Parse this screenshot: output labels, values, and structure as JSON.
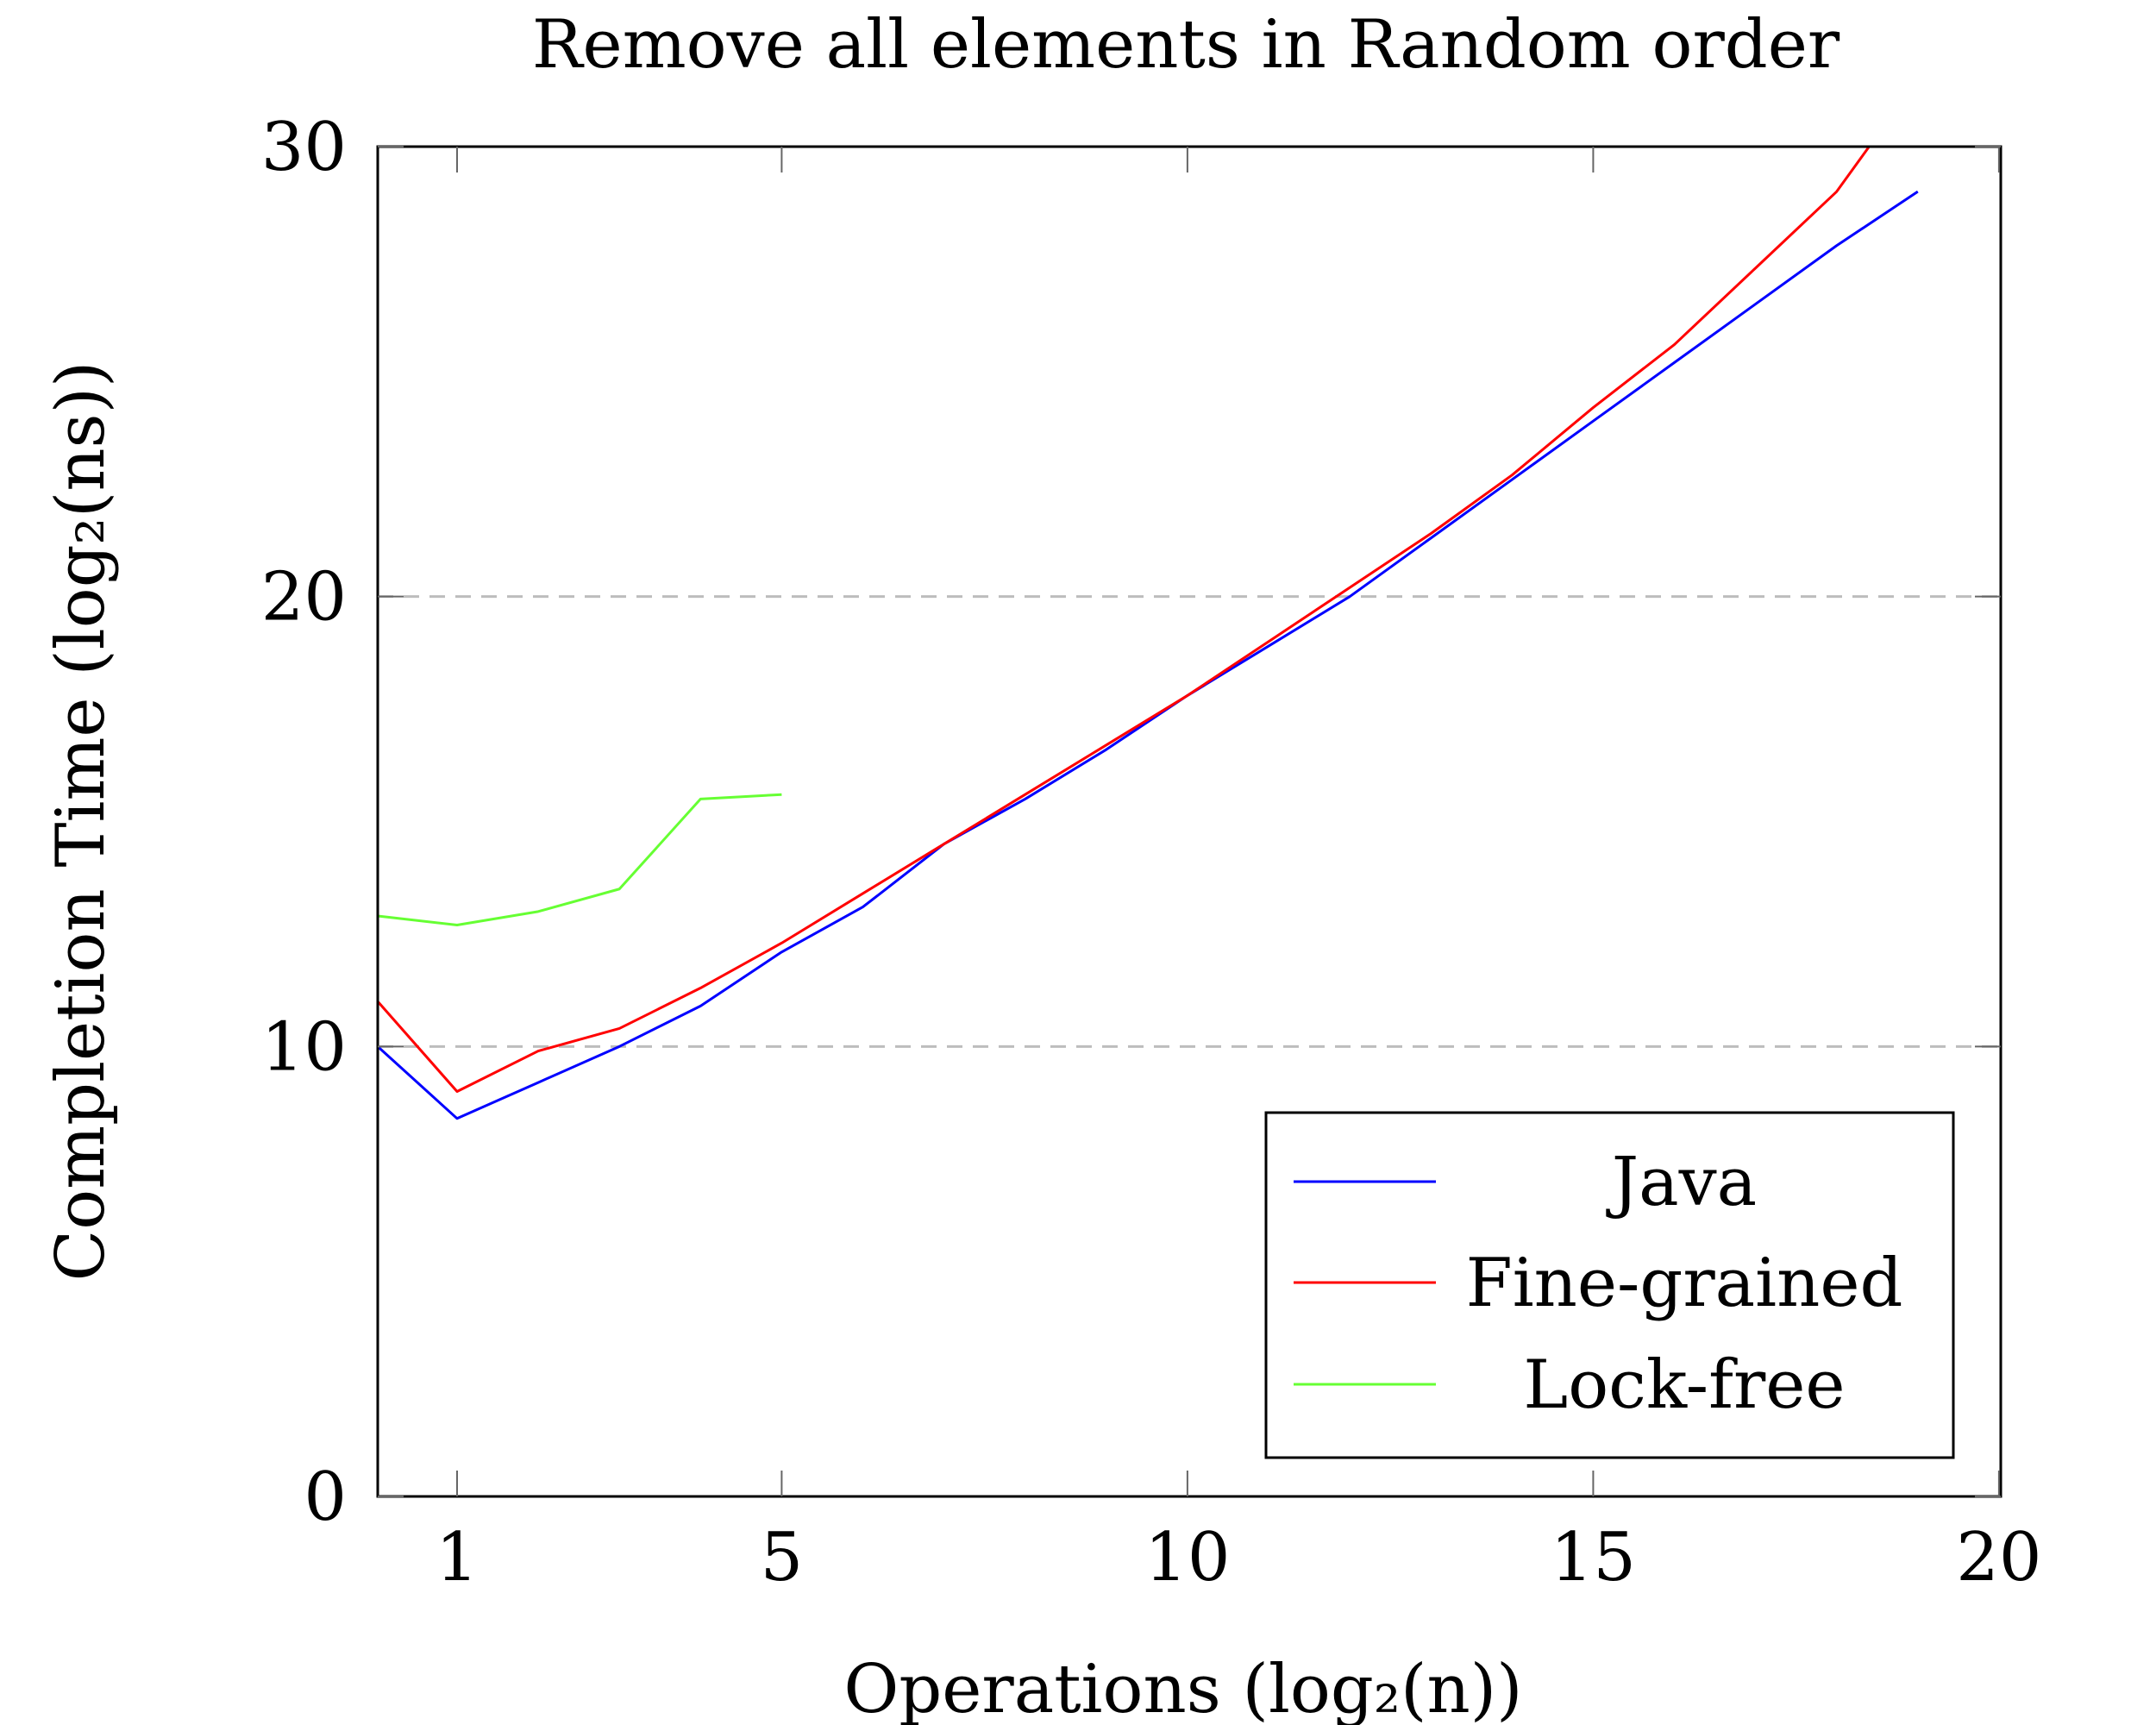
{
  "chart_data": {
    "type": "line",
    "title": "Remove all elements in Random order",
    "xlabel": "Operations (log₂(n))",
    "ylabel": "Completion Time (log₂(ns))",
    "xlim": [
      0,
      20
    ],
    "ylim": [
      0,
      30
    ],
    "xticks": [
      1,
      5,
      10,
      15,
      20
    ],
    "yticks": [
      0,
      10,
      20,
      30
    ],
    "grid": {
      "y_dashed": true,
      "x": false
    },
    "legend": {
      "position": "bottom-right"
    },
    "series": [
      {
        "name": "Java",
        "color": "#0000ff",
        "x": [
          0,
          1,
          2,
          3,
          4,
          5,
          6,
          7,
          8,
          9,
          10,
          11,
          12,
          13,
          14,
          15,
          16,
          17,
          18,
          19
        ],
        "y": [
          10.0,
          8.4,
          9.2,
          10.0,
          10.9,
          12.1,
          13.1,
          14.5,
          15.5,
          16.6,
          17.8,
          18.9,
          20.0,
          21.3,
          22.6,
          23.9,
          25.2,
          26.5,
          27.8,
          29.0
        ]
      },
      {
        "name": "Fine-grained",
        "color": "#ff0000",
        "x": [
          0,
          1,
          2,
          3,
          4,
          5,
          6,
          7,
          8,
          9,
          10,
          11,
          12,
          13,
          14,
          15,
          16,
          17,
          18,
          18.4
        ],
        "y": [
          11.0,
          9.0,
          9.9,
          10.4,
          11.3,
          12.3,
          13.4,
          14.5,
          15.6,
          16.7,
          17.8,
          19.0,
          20.2,
          21.4,
          22.7,
          24.2,
          25.6,
          27.3,
          29.0,
          30.0
        ]
      },
      {
        "name": "Lock-free",
        "color": "#66ff33",
        "x": [
          0,
          1,
          2,
          3,
          4,
          5
        ],
        "y": [
          12.9,
          12.7,
          13.0,
          13.5,
          15.5,
          15.6
        ]
      }
    ]
  }
}
